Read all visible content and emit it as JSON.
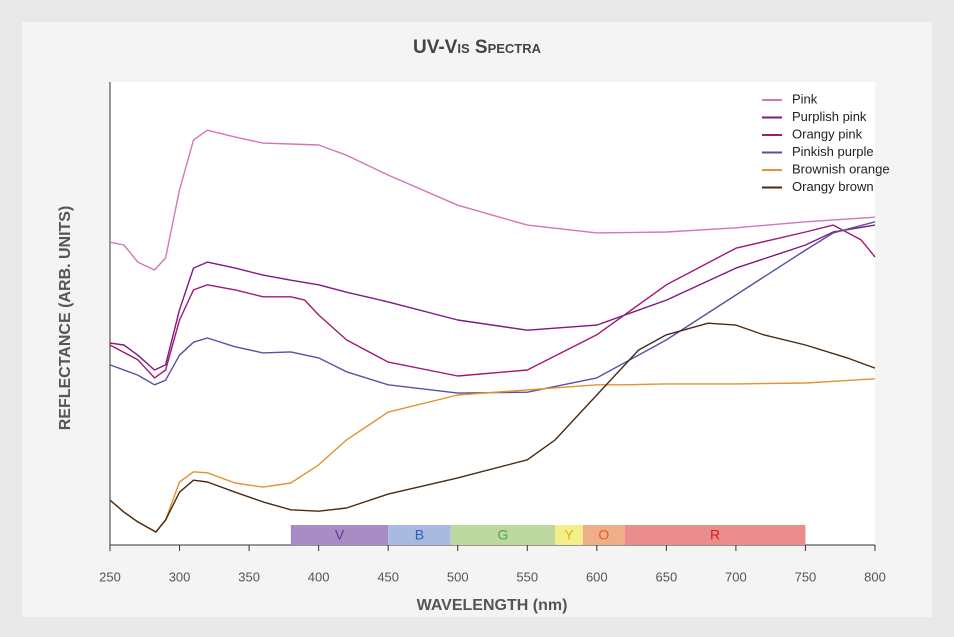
{
  "chart_data": {
    "type": "line",
    "title": "UV-Vis Spectra",
    "x_label": "WAVELENGTH (nm)",
    "y_label": "REFLECTANCE (ARB. UNITS)",
    "xlim": [
      250,
      800
    ],
    "xticks": [
      250,
      300,
      350,
      400,
      450,
      500,
      550,
      600,
      650,
      700,
      750,
      800
    ],
    "ylim": [
      0,
      100
    ],
    "legend": "top-right",
    "series": [
      {
        "name": "Pink",
        "color": "#d277b6",
        "x": [
          250,
          260,
          270,
          282,
          290,
          300,
          310,
          320,
          340,
          360,
          380,
          400,
          420,
          450,
          500,
          550,
          600,
          650,
          700,
          750,
          800
        ],
        "values": [
          65.4,
          64.8,
          61.1,
          59.4,
          62.0,
          76.7,
          87.5,
          89.6,
          88.1,
          86.8,
          86.6,
          86.4,
          84.2,
          79.9,
          73.4,
          69.1,
          67.4,
          67.6,
          68.5,
          69.8,
          70.8
        ]
      },
      {
        "name": "Purplish pink",
        "color": "#7a1a82",
        "x": [
          250,
          260,
          270,
          282,
          290,
          300,
          310,
          320,
          340,
          360,
          380,
          400,
          420,
          450,
          500,
          550,
          600,
          650,
          700,
          750,
          770,
          800
        ],
        "values": [
          43.6,
          43.2,
          41.0,
          37.8,
          38.9,
          50.8,
          59.8,
          61.1,
          59.8,
          58.3,
          57.2,
          56.2,
          54.6,
          52.5,
          48.6,
          46.4,
          47.5,
          52.9,
          59.8,
          64.8,
          67.6,
          69.1
        ]
      },
      {
        "name": "Orangy pink",
        "color": "#a3186f",
        "x": [
          250,
          270,
          282,
          290,
          300,
          310,
          320,
          340,
          360,
          380,
          390,
          400,
          420,
          450,
          500,
          550,
          600,
          650,
          700,
          750,
          770,
          790,
          800
        ],
        "values": [
          43.2,
          40.0,
          36.1,
          37.8,
          48.6,
          55.1,
          56.2,
          55.1,
          53.6,
          53.6,
          52.9,
          49.7,
          44.3,
          39.5,
          36.5,
          37.8,
          45.4,
          56.2,
          64.1,
          67.6,
          69.1,
          65.9,
          62.2
        ]
      },
      {
        "name": "Pinkish purple",
        "color": "#5b4fa2",
        "x": [
          250,
          270,
          282,
          290,
          300,
          310,
          320,
          340,
          360,
          380,
          400,
          420,
          450,
          500,
          550,
          600,
          650,
          700,
          750,
          770,
          800
        ],
        "values": [
          38.9,
          36.7,
          34.6,
          35.6,
          41.0,
          43.8,
          44.7,
          42.8,
          41.5,
          41.7,
          40.4,
          37.4,
          34.6,
          32.8,
          33.0,
          36.1,
          44.3,
          54.0,
          63.7,
          67.4,
          69.8
        ]
      },
      {
        "name": "Brownish orange",
        "color": "#e3922f",
        "x": [
          250,
          260,
          270,
          283,
          290,
          300,
          310,
          320,
          340,
          360,
          380,
          400,
          420,
          450,
          500,
          550,
          600,
          620,
          650,
          700,
          750,
          800
        ],
        "values": [
          9.7,
          7.1,
          5.0,
          2.8,
          5.4,
          13.6,
          15.8,
          15.6,
          13.4,
          12.5,
          13.4,
          17.3,
          22.7,
          28.7,
          32.4,
          33.5,
          34.6,
          34.6,
          34.8,
          34.8,
          35.0,
          35.9
        ]
      },
      {
        "name": "Orangy brown",
        "color": "#4a2b12",
        "x": [
          250,
          260,
          270,
          283,
          290,
          300,
          310,
          320,
          340,
          360,
          380,
          400,
          420,
          450,
          500,
          550,
          570,
          600,
          630,
          650,
          680,
          700,
          720,
          750,
          780,
          800
        ],
        "values": [
          9.7,
          7.1,
          5.0,
          2.8,
          5.4,
          11.4,
          14.0,
          13.6,
          11.4,
          9.3,
          7.6,
          7.3,
          8.0,
          11.0,
          14.5,
          18.4,
          22.7,
          32.4,
          42.1,
          45.4,
          47.9,
          47.5,
          45.4,
          43.2,
          40.4,
          38.2
        ]
      }
    ],
    "bands": [
      {
        "label": "V",
        "start": 380,
        "end": 450,
        "color": "#a98cc4",
        "text_color": "#5b3a9a"
      },
      {
        "label": "B",
        "start": 450,
        "end": 495,
        "color": "#a8badf",
        "text_color": "#2a5cc0"
      },
      {
        "label": "G",
        "start": 495,
        "end": 570,
        "color": "#bdd89f",
        "text_color": "#4aa84a"
      },
      {
        "label": "Y",
        "start": 570,
        "end": 590,
        "color": "#f4ef8a",
        "text_color": "#e0b800"
      },
      {
        "label": "O",
        "start": 590,
        "end": 620,
        "color": "#efae8a",
        "text_color": "#e06020"
      },
      {
        "label": "R",
        "start": 620,
        "end": 750,
        "color": "#ec8d8d",
        "text_color": "#d02020"
      }
    ]
  }
}
